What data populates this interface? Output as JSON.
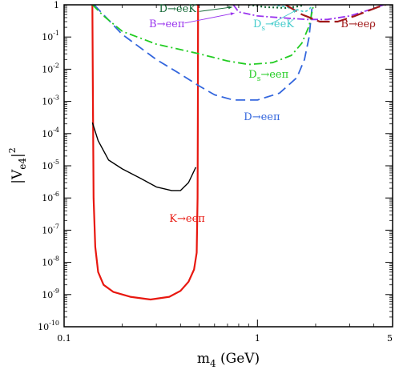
{
  "chart_data": {
    "type": "line",
    "x_scale": "log",
    "y_scale": "log",
    "xlim": [
      0.1,
      5
    ],
    "ylim": [
      1e-10,
      1
    ],
    "x_ticks": [
      {
        "value": 0.1,
        "label": "0.1"
      },
      {
        "value": 1,
        "label": "1"
      },
      {
        "value": 5,
        "label": "5"
      }
    ],
    "y_ticks": [
      {
        "exp": -10,
        "base": "10",
        "sup": "-10"
      },
      {
        "exp": -9,
        "base": "10",
        "sup": "-9"
      },
      {
        "exp": -8,
        "base": "10",
        "sup": "-8"
      },
      {
        "exp": -7,
        "base": "10",
        "sup": "-7"
      },
      {
        "exp": -6,
        "base": "10",
        "sup": "-6"
      },
      {
        "exp": -5,
        "base": "10",
        "sup": "-5"
      },
      {
        "exp": -4,
        "base": "10",
        "sup": "-4"
      },
      {
        "exp": -3,
        "base": "10",
        "sup": "-3"
      },
      {
        "exp": -2,
        "base": "10",
        "sup": "-2"
      },
      {
        "exp": -1,
        "base": "10",
        "sup": "-1"
      },
      {
        "exp": 0,
        "base": "1",
        "sup": ""
      }
    ],
    "xlabel": {
      "main": "m",
      "sub": "4",
      "unit": " (GeV)"
    },
    "ylabel": {
      "pre": "|V",
      "sub": "e4",
      "post": "|",
      "sup": "2"
    },
    "grid": false,
    "series": [
      {
        "name": "K→eeπ",
        "color": "#e8170f",
        "dash": "solid",
        "width": 2.2,
        "points": [
          [
            0.14,
            1
          ],
          [
            0.141,
            0.001
          ],
          [
            0.142,
            1e-06
          ],
          [
            0.145,
            3e-08
          ],
          [
            0.15,
            5e-09
          ],
          [
            0.16,
            2e-09
          ],
          [
            0.18,
            1.2e-09
          ],
          [
            0.22,
            8.5e-10
          ],
          [
            0.28,
            7e-10
          ],
          [
            0.35,
            8.5e-10
          ],
          [
            0.4,
            1.3e-09
          ],
          [
            0.44,
            2.5e-09
          ],
          [
            0.47,
            6e-09
          ],
          [
            0.485,
            2e-08
          ],
          [
            0.49,
            1e-06
          ],
          [
            0.492,
            0.001
          ],
          [
            0.493,
            1
          ]
        ],
        "label": {
          "text": "K→eeπ",
          "at": [
            0.35,
            1.8e-07
          ],
          "color": "#e8170f"
        }
      },
      {
        "name": "black",
        "color": "#000000",
        "dash": "solid",
        "width": 1.4,
        "points": [
          [
            0.14,
            0.00022
          ],
          [
            0.15,
            6e-05
          ],
          [
            0.17,
            1.5e-05
          ],
          [
            0.2,
            8e-06
          ],
          [
            0.25,
            4e-06
          ],
          [
            0.3,
            2.2e-06
          ],
          [
            0.36,
            1.7e-06
          ],
          [
            0.4,
            1.7e-06
          ],
          [
            0.44,
            3e-06
          ],
          [
            0.48,
            9e-06
          ]
        ]
      },
      {
        "name": "D→eeπ",
        "color": "#3366dd",
        "dash": "12,6",
        "width": 1.8,
        "points": [
          [
            0.143,
            1
          ],
          [
            0.2,
            0.12
          ],
          [
            0.3,
            0.02
          ],
          [
            0.4,
            0.007
          ],
          [
            0.5,
            0.003
          ],
          [
            0.6,
            0.0016
          ],
          [
            0.75,
            0.0011
          ],
          [
            1.0,
            0.0011
          ],
          [
            1.3,
            0.0018
          ],
          [
            1.6,
            0.0055
          ],
          [
            1.75,
            0.02
          ],
          [
            1.85,
            0.1
          ],
          [
            1.9,
            0.5
          ],
          [
            1.92,
            1
          ]
        ],
        "label": {
          "text": "D→eeπ",
          "at": [
            0.85,
            0.00026
          ],
          "color": "#3366dd"
        }
      },
      {
        "name": "Ds→eeπ",
        "color": "#22cc22",
        "dash": "10,4,2,4",
        "width": 1.8,
        "points": [
          [
            0.14,
            1
          ],
          [
            0.16,
            0.45
          ],
          [
            0.2,
            0.15
          ],
          [
            0.3,
            0.06
          ],
          [
            0.5,
            0.03
          ],
          [
            0.7,
            0.018
          ],
          [
            0.9,
            0.014
          ],
          [
            1.2,
            0.016
          ],
          [
            1.5,
            0.027
          ],
          [
            1.7,
            0.065
          ],
          [
            1.85,
            0.22
          ],
          [
            1.95,
            1
          ]
        ],
        "label": {
          "text": "Ds→eeπ",
          "at": [
            0.9,
            0.0055
          ],
          "color": "#22cc22"
        }
      },
      {
        "name": "B→eeπ",
        "color": "#9933ee",
        "dash": "9,3,2,3",
        "width": 1.8,
        "points": [
          [
            0.75,
            1
          ],
          [
            0.8,
            0.6
          ],
          [
            1.0,
            0.45
          ],
          [
            1.3,
            0.4
          ],
          [
            1.8,
            0.35
          ],
          [
            2.3,
            0.35
          ],
          [
            3.0,
            0.45
          ],
          [
            3.8,
            0.7
          ],
          [
            4.5,
            1
          ]
        ],
        "label": {
          "text": "B→eeπ",
          "at": [
            0.275,
            0.2
          ],
          "color": "#9933ee"
        }
      },
      {
        "name": "Ds→eeK",
        "color": "#44cccc",
        "dash": "3,3",
        "width": 1.6,
        "points": [
          [
            1.2,
            1
          ],
          [
            1.5,
            0.8
          ],
          [
            1.75,
            0.6
          ],
          [
            1.85,
            0.7
          ],
          [
            1.92,
            1
          ]
        ],
        "label": {
          "text": "Ds→eeK",
          "at": [
            0.95,
            0.2
          ],
          "color": "#44cccc"
        }
      },
      {
        "name": "D→eeK",
        "color": "#116633",
        "dash": "2,3",
        "width": 2.2,
        "points": [
          [
            0.9,
            1
          ],
          [
            1.1,
            0.85
          ],
          [
            1.4,
            0.8
          ],
          [
            1.65,
            0.9
          ],
          [
            1.75,
            1
          ]
        ],
        "label": {
          "text": "D→eeK",
          "at": [
            0.31,
            0.6
          ],
          "color": "#116633"
        }
      },
      {
        "name": "B→eeρ",
        "color": "#a01818",
        "dash": "16,6",
        "width": 2.2,
        "points": [
          [
            1.4,
            1
          ],
          [
            1.7,
            0.5
          ],
          [
            2.1,
            0.3
          ],
          [
            2.6,
            0.3
          ],
          [
            3.2,
            0.45
          ],
          [
            4.2,
            0.85
          ],
          [
            4.6,
            1
          ]
        ],
        "label": {
          "text": "B→eeρ",
          "at": [
            2.7,
            0.2
          ],
          "color": "#a01818"
        }
      }
    ]
  }
}
